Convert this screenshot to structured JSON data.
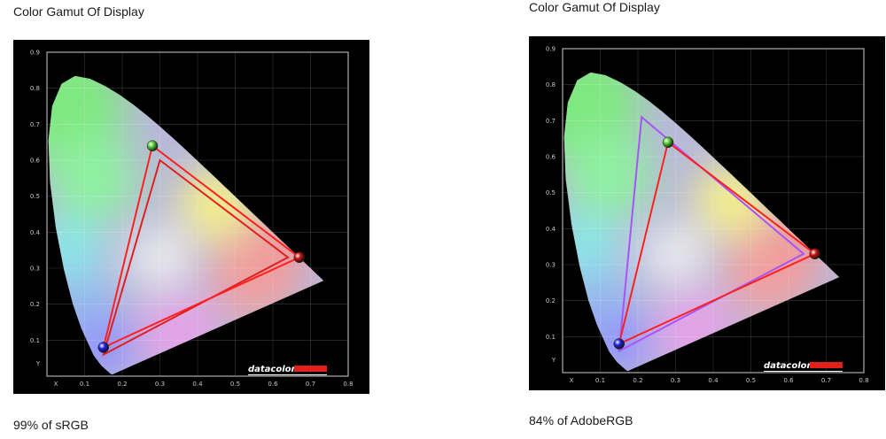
{
  "chart_data": [
    {
      "type": "scatter",
      "title": "Color Gamut Of Display",
      "caption": "99% of sRGB",
      "xlabel": "X",
      "ylabel": "Y",
      "xlim": [
        0,
        0.8
      ],
      "ylim": [
        0,
        0.9
      ],
      "xticks": [
        "0.1",
        "0.2",
        "0.3",
        "0.4",
        "0.5",
        "0.6",
        "0.7",
        "0.8"
      ],
      "yticks": [
        "0.1",
        "0.2",
        "0.3",
        "0.4",
        "0.5",
        "0.6",
        "0.7",
        "0.8",
        "0.9"
      ],
      "grid": true,
      "brand": "datacolor",
      "series": [
        {
          "color": "#e02020",
          "closed": true,
          "values": [
            [
              0.64,
              0.33
            ],
            [
              0.3,
              0.6
            ],
            [
              0.15,
              0.06
            ]
          ]
        },
        {
          "color": "#ff2020",
          "closed": true,
          "values": [
            [
              0.67,
              0.33
            ],
            [
              0.28,
              0.64
            ],
            [
              0.15,
              0.08
            ]
          ]
        }
      ],
      "primaries": [
        {
          "x": 0.28,
          "y": 0.64,
          "color": "#55cc33"
        },
        {
          "x": 0.67,
          "y": 0.33,
          "color": "#cc1111"
        },
        {
          "x": 0.15,
          "y": 0.08,
          "color": "#2222dd"
        }
      ]
    },
    {
      "type": "scatter",
      "title": "Color Gamut Of Display",
      "caption": "84% of AdobeRGB",
      "xlabel": "X",
      "ylabel": "Y",
      "xlim": [
        0,
        0.8
      ],
      "ylim": [
        0,
        0.9
      ],
      "xticks": [
        "0.1",
        "0.2",
        "0.3",
        "0.4",
        "0.5",
        "0.6",
        "0.7",
        "0.8"
      ],
      "yticks": [
        "0.1",
        "0.2",
        "0.3",
        "0.4",
        "0.5",
        "0.6",
        "0.7",
        "0.8",
        "0.9"
      ],
      "grid": true,
      "brand": "datacolor",
      "series": [
        {
          "color": "#a855f7",
          "closed": true,
          "values": [
            [
              0.64,
              0.33
            ],
            [
              0.21,
              0.71
            ],
            [
              0.15,
              0.06
            ]
          ]
        },
        {
          "color": "#ff2020",
          "closed": true,
          "values": [
            [
              0.67,
              0.33
            ],
            [
              0.28,
              0.64
            ],
            [
              0.15,
              0.08
            ]
          ]
        }
      ],
      "primaries": [
        {
          "x": 0.28,
          "y": 0.64,
          "color": "#55cc33"
        },
        {
          "x": 0.67,
          "y": 0.33,
          "color": "#cc1111"
        },
        {
          "x": 0.15,
          "y": 0.08,
          "color": "#2222dd"
        }
      ]
    }
  ]
}
